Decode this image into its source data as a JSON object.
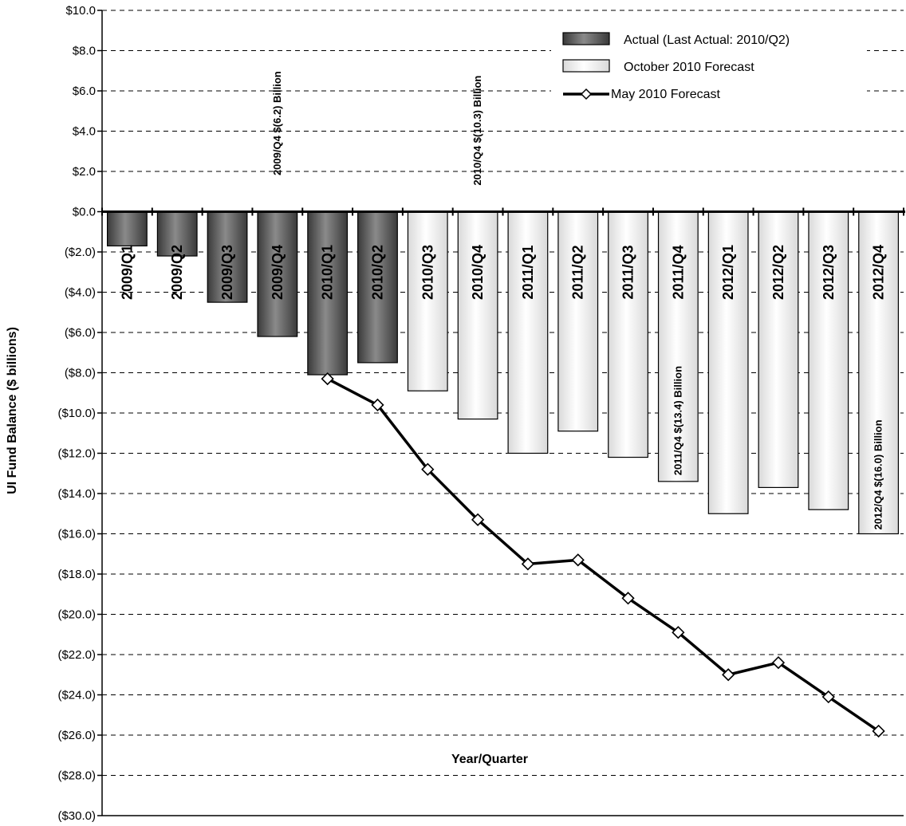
{
  "chart_data": {
    "type": "bar",
    "ylabel": "UI Fund Balance ($ billions)",
    "xlabel": "Year/Quarter",
    "ylim": [
      -30,
      10
    ],
    "ytick_step": 2,
    "ytick_labels": [
      "$10.0",
      "$8.0",
      "$6.0",
      "$4.0",
      "$2.0",
      "$0.0",
      "($2.0)",
      "($4.0)",
      "($6.0)",
      "($8.0)",
      "($10.0)",
      "($12.0)",
      "($14.0)",
      "($16.0)",
      "($18.0)",
      "($20.0)",
      "($22.0)",
      "($24.0)",
      "($26.0)",
      "($28.0)",
      "($30.0)"
    ],
    "grid": true,
    "legend_position": "top-right",
    "categories": [
      "2009/Q1",
      "2009/Q2",
      "2009/Q3",
      "2009/Q4",
      "2010/Q1",
      "2010/Q2",
      "2010/Q3",
      "2010/Q4",
      "2011/Q1",
      "2011/Q2",
      "2011/Q3",
      "2011/Q4",
      "2012/Q1",
      "2012/Q2",
      "2012/Q3",
      "2012/Q4"
    ],
    "series": [
      {
        "name": "Actual (Last Actual: 2010/Q2)",
        "kind": "bar",
        "color": "#555555",
        "values": [
          -1.7,
          -2.2,
          -4.5,
          -6.2,
          -8.1,
          -7.5,
          null,
          null,
          null,
          null,
          null,
          null,
          null,
          null,
          null,
          null
        ]
      },
      {
        "name": "October 2010 Forecast",
        "kind": "bar",
        "color": "#e8e8e8",
        "values": [
          null,
          null,
          null,
          null,
          null,
          null,
          -8.9,
          -10.3,
          -12.0,
          -10.9,
          -12.2,
          -13.4,
          -15.0,
          -13.7,
          -14.8,
          -16.0
        ]
      },
      {
        "name": "May 2010 Forecast",
        "kind": "line",
        "color": "#000000",
        "values": [
          null,
          null,
          null,
          null,
          -8.3,
          -9.6,
          -12.8,
          -15.3,
          -17.5,
          -17.3,
          -19.2,
          -20.9,
          -23.0,
          -22.4,
          -24.1,
          -25.8
        ]
      }
    ],
    "annotations": [
      {
        "text": "2009/Q4 $(6.2) Billion",
        "category_index": 3,
        "anchor_value": 1.8
      },
      {
        "text": "2010/Q4 $(10.3) Billion",
        "category_index": 7,
        "anchor_value": 1.3
      },
      {
        "text": "2011/Q4 $(13.4) Billion",
        "category_index": 11,
        "anchor_value": -13.1
      },
      {
        "text": "2012/Q4 $(16.0) Billion",
        "category_index": 15,
        "anchor_value": -15.8
      }
    ]
  }
}
